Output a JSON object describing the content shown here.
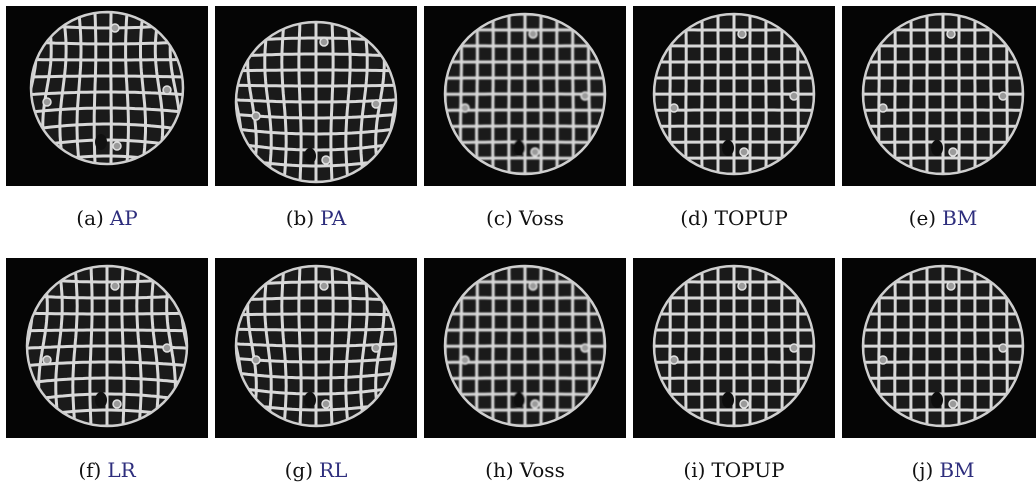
{
  "colors": {
    "link": "#2e2e7d",
    "text": "#111111",
    "background": "#ffffff",
    "image_background": "#050505"
  },
  "panels": [
    {
      "id": "a",
      "tag": "(a)",
      "label": "AP",
      "label_is_link": true
    },
    {
      "id": "b",
      "tag": "(b)",
      "label": "PA",
      "label_is_link": true
    },
    {
      "id": "c",
      "tag": "(c)",
      "label": "Voss",
      "label_is_link": false
    },
    {
      "id": "d",
      "tag": "(d)",
      "label": "TOPUP",
      "label_is_link": false
    },
    {
      "id": "e",
      "tag": "(e)",
      "label": "BM",
      "label_is_link": true
    },
    {
      "id": "f",
      "tag": "(f)",
      "label": "LR",
      "label_is_link": true
    },
    {
      "id": "g",
      "tag": "(g)",
      "label": "RL",
      "label_is_link": true
    },
    {
      "id": "h",
      "tag": "(h)",
      "label": "Voss",
      "label_is_link": false
    },
    {
      "id": "i",
      "tag": "(i)",
      "label": "TOPUP",
      "label_is_link": false
    },
    {
      "id": "j",
      "tag": "(j)",
      "label": "BM",
      "label_is_link": true
    }
  ]
}
